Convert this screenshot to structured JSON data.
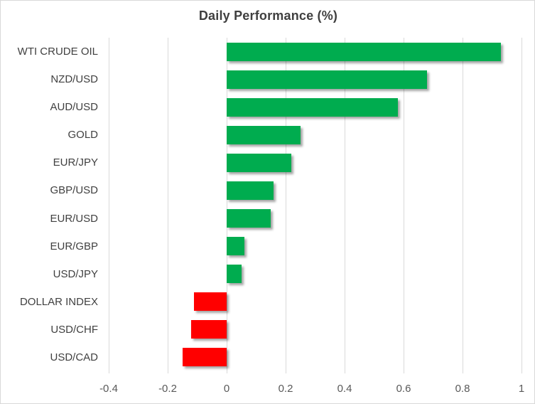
{
  "chart_data": {
    "type": "bar",
    "orientation": "horizontal",
    "title": "Daily Performance (%)",
    "categories": [
      "WTI CRUDE OIL",
      "NZD/USD",
      "AUD/USD",
      "GOLD",
      "EUR/JPY",
      "GBP/USD",
      "EUR/USD",
      "EUR/GBP",
      "USD/JPY",
      "DOLLAR INDEX",
      "USD/CHF",
      "USD/CAD"
    ],
    "values": [
      0.93,
      0.68,
      0.58,
      0.25,
      0.22,
      0.16,
      0.15,
      0.06,
      0.05,
      -0.11,
      -0.12,
      -0.15
    ],
    "xlabel": "",
    "ylabel": "",
    "xlim": [
      -0.4,
      1.0
    ],
    "x_ticks": [
      -0.4,
      -0.2,
      0,
      0.2,
      0.4,
      0.6,
      0.8,
      1
    ],
    "x_tick_labels": [
      "-0.4",
      "-0.2",
      "0",
      "0.2",
      "0.4",
      "0.6",
      "0.8",
      "1"
    ],
    "grid": true,
    "legend_position": "none",
    "colors": {
      "positive_bar": "#00AC4F",
      "negative_bar": "#FF0000",
      "gridline": "#D9D9D9",
      "title_text": "#3F3F3F",
      "category_text": "#404040",
      "tick_text": "#595959",
      "chart_border": "#D9D9D9",
      "background": "#FFFFFF"
    }
  }
}
